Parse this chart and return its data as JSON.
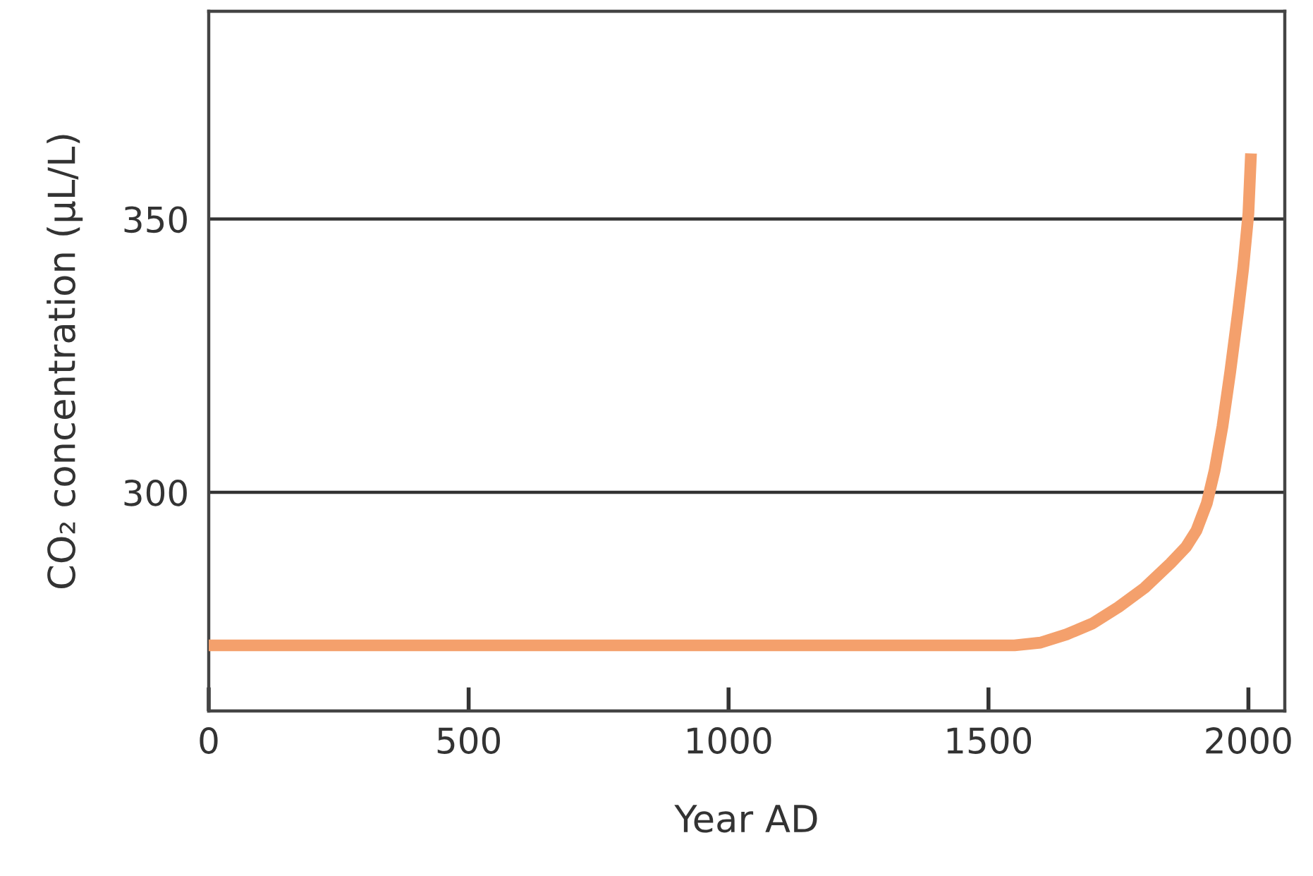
{
  "chart_data": {
    "type": "line",
    "xlabel": "Year AD",
    "ylabel": "CO₂ concentration (µL/L)",
    "x": [
      0,
      500,
      1000,
      1500,
      1550,
      1600,
      1650,
      1700,
      1750,
      1800,
      1850,
      1880,
      1900,
      1920,
      1935,
      1950,
      1965,
      1980,
      1990,
      2000,
      2005
    ],
    "series": [
      {
        "color": "#f4a06c",
        "values": [
          272,
          272,
          272,
          272,
          272,
          272.5,
          274,
          276,
          279,
          282.5,
          287,
          290,
          293,
          298,
          304,
          312,
          322,
          333,
          341,
          351,
          362
        ]
      }
    ],
    "xlim": [
      0,
      2070
    ],
    "ylim": [
      260,
      388
    ],
    "xticks": [
      0,
      500,
      1000,
      1500,
      2000
    ],
    "yticks": [
      300,
      350
    ],
    "grid": "y",
    "marker": "none",
    "line_style": "solid",
    "legend": false
  }
}
